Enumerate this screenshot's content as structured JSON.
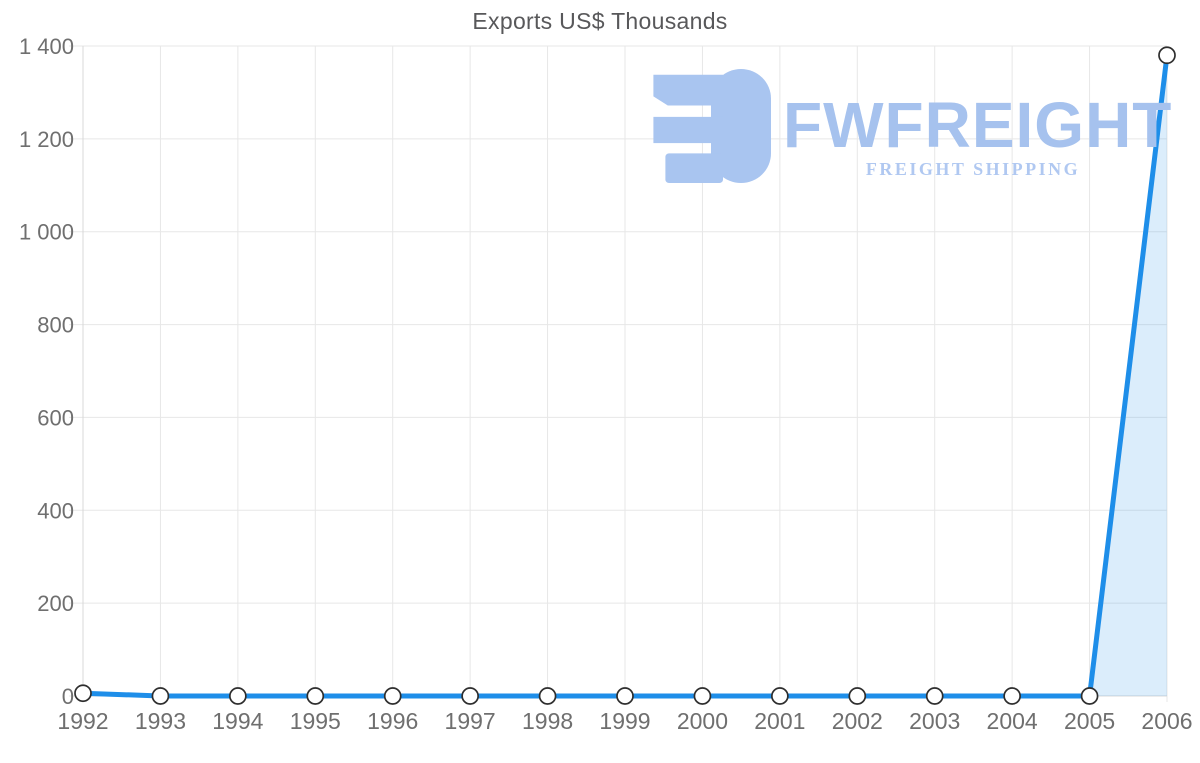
{
  "title": "Exports US$ Thousands",
  "logo": {
    "brand": "FWFREIGHT",
    "tagline": "FREIGHT SHIPPING",
    "brand_color": "#a6c2ee",
    "tagline_color": "#b0c8f1",
    "icon_color": "#a9c5f0"
  },
  "chart_data": {
    "type": "area",
    "title": "Exports US$ Thousands",
    "xlabel": "",
    "ylabel": "",
    "categories": [
      "1992",
      "1993",
      "1994",
      "1995",
      "1996",
      "1997",
      "1998",
      "1999",
      "2000",
      "2001",
      "2002",
      "2003",
      "2004",
      "2005",
      "2006"
    ],
    "values": [
      6,
      0,
      0,
      0,
      0,
      0,
      0,
      0,
      0,
      0,
      0,
      0,
      0,
      0,
      1380
    ],
    "ylim": [
      0,
      1400
    ],
    "ytick_values": [
      0,
      200,
      400,
      600,
      800,
      1000,
      1200,
      1400
    ],
    "ytick_labels": [
      "0",
      "200",
      "400",
      "600",
      "800",
      "1 000",
      "1 200",
      "1 400"
    ],
    "grid": true,
    "legend": "none",
    "line_color": "#1e8ee9",
    "area_color": "rgba(30,142,233,0.16)",
    "marker_fill": "#ffffff",
    "marker_stroke": "#2e2e2e",
    "grid_color": "#e7e7e7",
    "axis_color": "#d8d8d8",
    "tick_label_color": "#6f6f6f",
    "title_color": "#58585a"
  }
}
